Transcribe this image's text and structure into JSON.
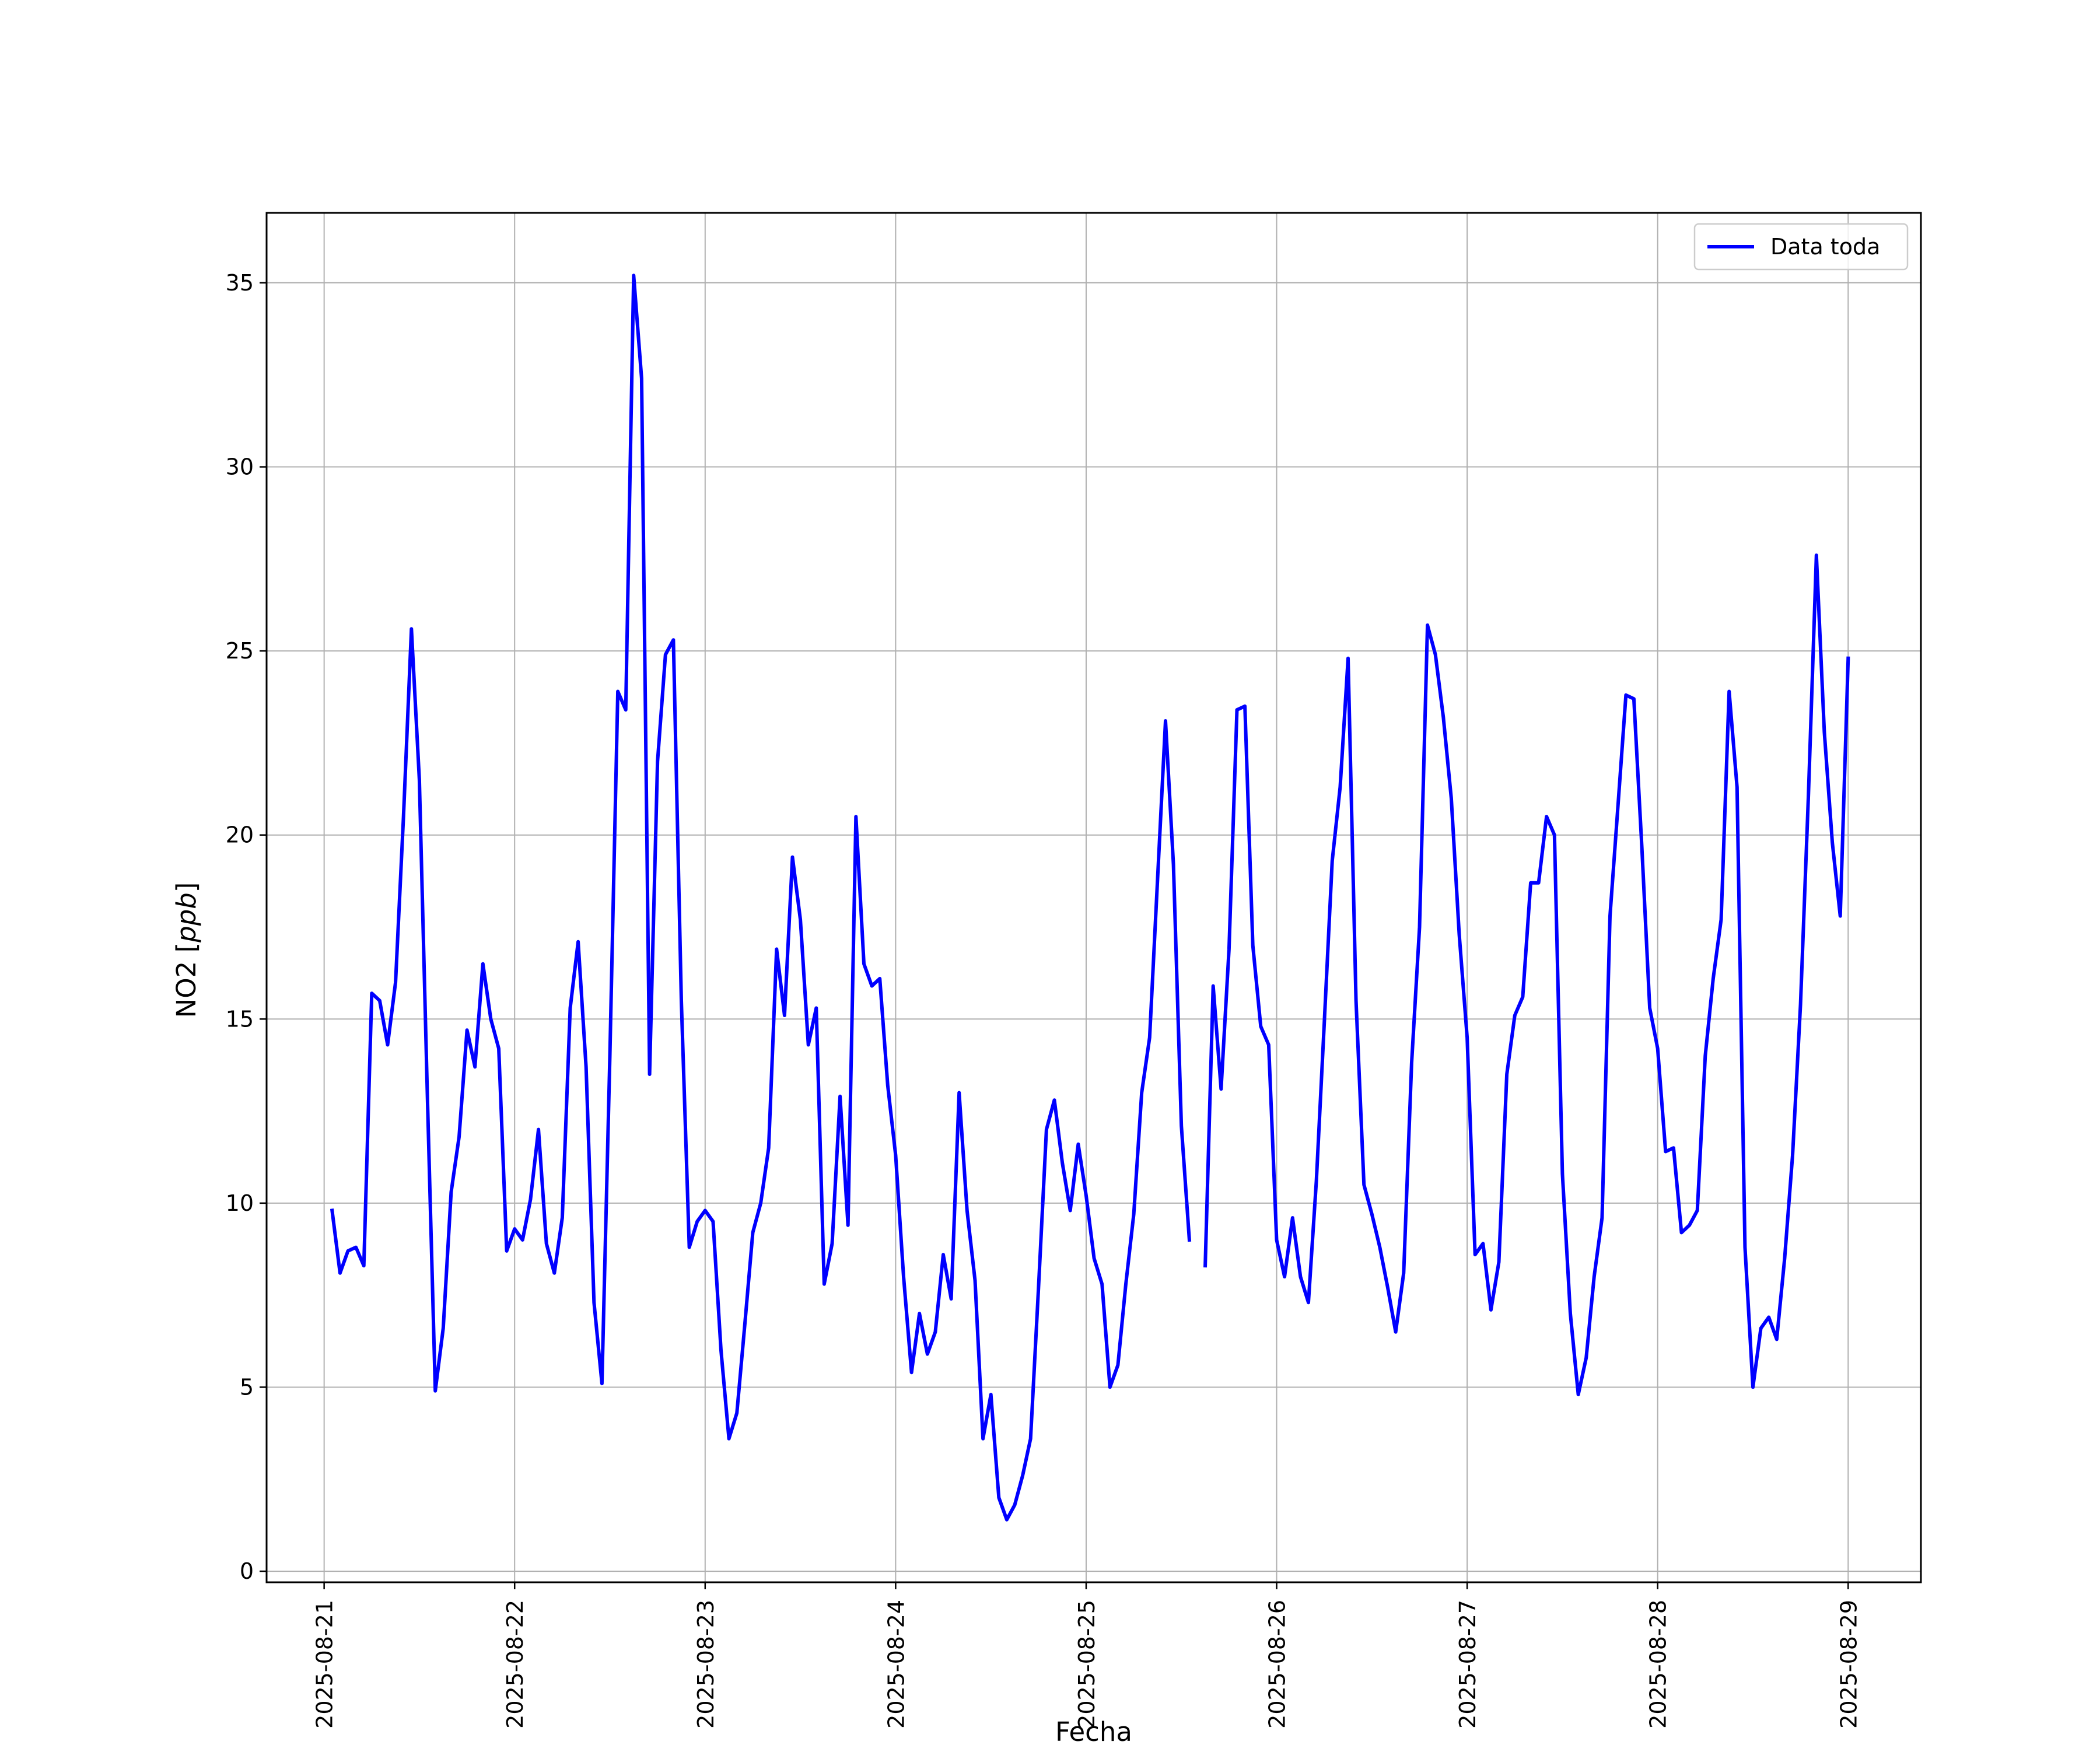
{
  "chart_data": {
    "type": "line",
    "title": "",
    "xlabel": "Fecha",
    "ylabel": "NO2 [ppb]",
    "ylabel_parts": {
      "base": "NO2 [",
      "unit": "ppb",
      "close": "]"
    },
    "xlim": [
      "2025-08-20T16:45:00",
      "2025-08-29T09:10:00"
    ],
    "ylim": [
      -0.3,
      36.9
    ],
    "x_ticks": [
      "2025-08-21",
      "2025-08-22",
      "2025-08-23",
      "2025-08-24",
      "2025-08-25",
      "2025-08-26",
      "2025-08-27",
      "2025-08-28",
      "2025-08-29"
    ],
    "y_ticks": [
      0,
      5,
      10,
      15,
      20,
      25,
      30,
      35
    ],
    "grid": true,
    "legend_position": "upper right",
    "series": [
      {
        "name": "Data toda",
        "color": "#0000ff",
        "points": [
          [
            "2025-08-21T01:00",
            9.8
          ],
          [
            "2025-08-21T02:00",
            8.1
          ],
          [
            "2025-08-21T03:00",
            8.7
          ],
          [
            "2025-08-21T04:00",
            8.8
          ],
          [
            "2025-08-21T05:00",
            8.3
          ],
          [
            "2025-08-21T06:00",
            15.7
          ],
          [
            "2025-08-21T07:00",
            15.5
          ],
          [
            "2025-08-21T08:00",
            14.3
          ],
          [
            "2025-08-21T09:00",
            16.0
          ],
          [
            "2025-08-21T10:00",
            20.5
          ],
          [
            "2025-08-21T11:00",
            25.6
          ],
          [
            "2025-08-21T12:00",
            21.5
          ],
          [
            "2025-08-21T13:00",
            13.0
          ],
          [
            "2025-08-21T14:00",
            4.9
          ],
          [
            "2025-08-21T15:00",
            6.6
          ],
          [
            "2025-08-21T16:00",
            10.3
          ],
          [
            "2025-08-21T17:00",
            11.8
          ],
          [
            "2025-08-21T18:00",
            14.7
          ],
          [
            "2025-08-21T19:00",
            13.7
          ],
          [
            "2025-08-21T20:00",
            16.5
          ],
          [
            "2025-08-21T21:00",
            15.0
          ],
          [
            "2025-08-21T22:00",
            14.2
          ],
          [
            "2025-08-21T23:00",
            8.7
          ],
          [
            "2025-08-22T00:00",
            9.3
          ],
          [
            "2025-08-22T01:00",
            9.0
          ],
          [
            "2025-08-22T02:00",
            10.1
          ],
          [
            "2025-08-22T03:00",
            12.0
          ],
          [
            "2025-08-22T04:00",
            8.9
          ],
          [
            "2025-08-22T05:00",
            8.1
          ],
          [
            "2025-08-22T06:00",
            9.6
          ],
          [
            "2025-08-22T07:00",
            15.3
          ],
          [
            "2025-08-22T08:00",
            17.1
          ],
          [
            "2025-08-22T09:00",
            13.7
          ],
          [
            "2025-08-22T10:00",
            7.3
          ],
          [
            "2025-08-22T11:00",
            5.1
          ],
          [
            "2025-08-22T12:00",
            14.0
          ],
          [
            "2025-08-22T13:00",
            23.9
          ],
          [
            "2025-08-22T14:00",
            23.4
          ],
          [
            "2025-08-22T15:00",
            35.2
          ],
          [
            "2025-08-22T16:00",
            32.4
          ],
          [
            "2025-08-22T17:00",
            13.5
          ],
          [
            "2025-08-22T18:00",
            22.0
          ],
          [
            "2025-08-22T19:00",
            24.9
          ],
          [
            "2025-08-22T20:00",
            25.3
          ],
          [
            "2025-08-22T21:00",
            15.5
          ],
          [
            "2025-08-22T22:00",
            8.8
          ],
          [
            "2025-08-22T23:00",
            9.5
          ],
          [
            "2025-08-23T00:00",
            9.8
          ],
          [
            "2025-08-23T01:00",
            9.5
          ],
          [
            "2025-08-23T02:00",
            6.0
          ],
          [
            "2025-08-23T03:00",
            3.6
          ],
          [
            "2025-08-23T04:00",
            4.3
          ],
          [
            "2025-08-23T05:00",
            6.7
          ],
          [
            "2025-08-23T06:00",
            9.2
          ],
          [
            "2025-08-23T07:00",
            10.0
          ],
          [
            "2025-08-23T08:00",
            11.5
          ],
          [
            "2025-08-23T09:00",
            16.9
          ],
          [
            "2025-08-23T10:00",
            15.1
          ],
          [
            "2025-08-23T11:00",
            19.4
          ],
          [
            "2025-08-23T12:00",
            17.7
          ],
          [
            "2025-08-23T13:00",
            14.3
          ],
          [
            "2025-08-23T14:00",
            15.3
          ],
          [
            "2025-08-23T15:00",
            7.8
          ],
          [
            "2025-08-23T16:00",
            8.9
          ],
          [
            "2025-08-23T17:00",
            12.9
          ],
          [
            "2025-08-23T18:00",
            9.4
          ],
          [
            "2025-08-23T19:00",
            20.5
          ],
          [
            "2025-08-23T20:00",
            16.5
          ],
          [
            "2025-08-23T21:00",
            15.9
          ],
          [
            "2025-08-23T22:00",
            16.1
          ],
          [
            "2025-08-23T23:00",
            13.2
          ],
          [
            "2025-08-24T00:00",
            11.3
          ],
          [
            "2025-08-24T01:00",
            8.0
          ],
          [
            "2025-08-24T02:00",
            5.4
          ],
          [
            "2025-08-24T03:00",
            7.0
          ],
          [
            "2025-08-24T04:00",
            5.9
          ],
          [
            "2025-08-24T05:00",
            6.5
          ],
          [
            "2025-08-24T06:00",
            8.6
          ],
          [
            "2025-08-24T07:00",
            7.4
          ],
          [
            "2025-08-24T08:00",
            13.0
          ],
          [
            "2025-08-24T09:00",
            9.8
          ],
          [
            "2025-08-24T10:00",
            7.9
          ],
          [
            "2025-08-24T11:00",
            3.6
          ],
          [
            "2025-08-24T12:00",
            4.8
          ],
          [
            "2025-08-24T13:00",
            2.0
          ],
          [
            "2025-08-24T14:00",
            1.4
          ],
          [
            "2025-08-24T15:00",
            1.8
          ],
          [
            "2025-08-24T16:00",
            2.6
          ],
          [
            "2025-08-24T17:00",
            3.6
          ],
          [
            "2025-08-24T18:00",
            7.7
          ],
          [
            "2025-08-24T19:00",
            12.0
          ],
          [
            "2025-08-24T20:00",
            12.8
          ],
          [
            "2025-08-24T21:00",
            11.1
          ],
          [
            "2025-08-24T22:00",
            9.8
          ],
          [
            "2025-08-24T23:00",
            11.6
          ],
          [
            "2025-08-25T00:00",
            10.2
          ],
          [
            "2025-08-25T01:00",
            8.5
          ],
          [
            "2025-08-25T02:00",
            7.8
          ],
          [
            "2025-08-25T03:00",
            5.0
          ],
          [
            "2025-08-25T04:00",
            5.6
          ],
          [
            "2025-08-25T05:00",
            7.8
          ],
          [
            "2025-08-25T06:00",
            9.7
          ],
          [
            "2025-08-25T07:00",
            13.0
          ],
          [
            "2025-08-25T08:00",
            14.5
          ],
          [
            "2025-08-25T09:00",
            18.8
          ],
          [
            "2025-08-25T10:00",
            23.1
          ],
          [
            "2025-08-25T11:00",
            19.2
          ],
          [
            "2025-08-25T12:00",
            12.1
          ],
          [
            "2025-08-25T13:00",
            9.0
          ],
          [
            "2025-08-25T14:00",
            null
          ],
          [
            "2025-08-25T15:00",
            8.3
          ],
          [
            "2025-08-25T16:00",
            15.9
          ],
          [
            "2025-08-25T17:00",
            13.1
          ],
          [
            "2025-08-25T18:00",
            16.9
          ],
          [
            "2025-08-25T19:00",
            23.4
          ],
          [
            "2025-08-25T20:00",
            23.5
          ],
          [
            "2025-08-25T21:00",
            17.0
          ],
          [
            "2025-08-25T22:00",
            14.8
          ],
          [
            "2025-08-25T23:00",
            14.3
          ],
          [
            "2025-08-26T00:00",
            9.0
          ],
          [
            "2025-08-26T01:00",
            8.0
          ],
          [
            "2025-08-26T02:00",
            9.6
          ],
          [
            "2025-08-26T03:00",
            8.0
          ],
          [
            "2025-08-26T04:00",
            7.3
          ],
          [
            "2025-08-26T05:00",
            10.6
          ],
          [
            "2025-08-26T06:00",
            14.9
          ],
          [
            "2025-08-26T07:00",
            19.3
          ],
          [
            "2025-08-26T08:00",
            21.3
          ],
          [
            "2025-08-26T09:00",
            24.8
          ],
          [
            "2025-08-26T10:00",
            15.5
          ],
          [
            "2025-08-26T11:00",
            10.5
          ],
          [
            "2025-08-26T12:00",
            9.7
          ],
          [
            "2025-08-26T13:00",
            8.8
          ],
          [
            "2025-08-26T14:00",
            7.7
          ],
          [
            "2025-08-26T15:00",
            6.5
          ],
          [
            "2025-08-26T16:00",
            8.1
          ],
          [
            "2025-08-26T17:00",
            13.8
          ],
          [
            "2025-08-26T18:00",
            17.5
          ],
          [
            "2025-08-26T19:00",
            25.7
          ],
          [
            "2025-08-26T20:00",
            24.9
          ],
          [
            "2025-08-26T21:00",
            23.2
          ],
          [
            "2025-08-26T22:00",
            21.0
          ],
          [
            "2025-08-26T23:00",
            17.3
          ],
          [
            "2025-08-27T00:00",
            14.5
          ],
          [
            "2025-08-27T01:00",
            8.6
          ],
          [
            "2025-08-27T02:00",
            8.9
          ],
          [
            "2025-08-27T03:00",
            7.1
          ],
          [
            "2025-08-27T04:00",
            8.4
          ],
          [
            "2025-08-27T05:00",
            13.5
          ],
          [
            "2025-08-27T06:00",
            15.1
          ],
          [
            "2025-08-27T07:00",
            15.6
          ],
          [
            "2025-08-27T08:00",
            18.7
          ],
          [
            "2025-08-27T09:00",
            18.7
          ],
          [
            "2025-08-27T10:00",
            20.5
          ],
          [
            "2025-08-27T11:00",
            20.0
          ],
          [
            "2025-08-27T12:00",
            10.8
          ],
          [
            "2025-08-27T13:00",
            7.0
          ],
          [
            "2025-08-27T14:00",
            4.8
          ],
          [
            "2025-08-27T15:00",
            5.8
          ],
          [
            "2025-08-27T16:00",
            8.0
          ],
          [
            "2025-08-27T17:00",
            9.6
          ],
          [
            "2025-08-27T18:00",
            17.8
          ],
          [
            "2025-08-27T19:00",
            20.8
          ],
          [
            "2025-08-27T20:00",
            23.8
          ],
          [
            "2025-08-27T21:00",
            23.7
          ],
          [
            "2025-08-27T22:00",
            19.7
          ],
          [
            "2025-08-27T23:00",
            15.3
          ],
          [
            "2025-08-28T00:00",
            14.2
          ],
          [
            "2025-08-28T01:00",
            11.4
          ],
          [
            "2025-08-28T02:00",
            11.5
          ],
          [
            "2025-08-28T03:00",
            9.2
          ],
          [
            "2025-08-28T04:00",
            9.4
          ],
          [
            "2025-08-28T05:00",
            9.8
          ],
          [
            "2025-08-28T06:00",
            14.0
          ],
          [
            "2025-08-28T07:00",
            16.1
          ],
          [
            "2025-08-28T08:00",
            17.7
          ],
          [
            "2025-08-28T09:00",
            23.9
          ],
          [
            "2025-08-28T10:00",
            21.3
          ],
          [
            "2025-08-28T11:00",
            8.8
          ],
          [
            "2025-08-28T12:00",
            5.0
          ],
          [
            "2025-08-28T13:00",
            6.6
          ],
          [
            "2025-08-28T14:00",
            6.9
          ],
          [
            "2025-08-28T15:00",
            6.3
          ],
          [
            "2025-08-28T16:00",
            8.5
          ],
          [
            "2025-08-28T17:00",
            11.3
          ],
          [
            "2025-08-28T18:00",
            15.4
          ],
          [
            "2025-08-28T19:00",
            21.1
          ],
          [
            "2025-08-28T20:00",
            27.6
          ],
          [
            "2025-08-28T21:00",
            22.8
          ],
          [
            "2025-08-28T22:00",
            19.8
          ],
          [
            "2025-08-28T23:00",
            17.8
          ],
          [
            "2025-08-29T00:00",
            24.8
          ]
        ]
      }
    ]
  }
}
